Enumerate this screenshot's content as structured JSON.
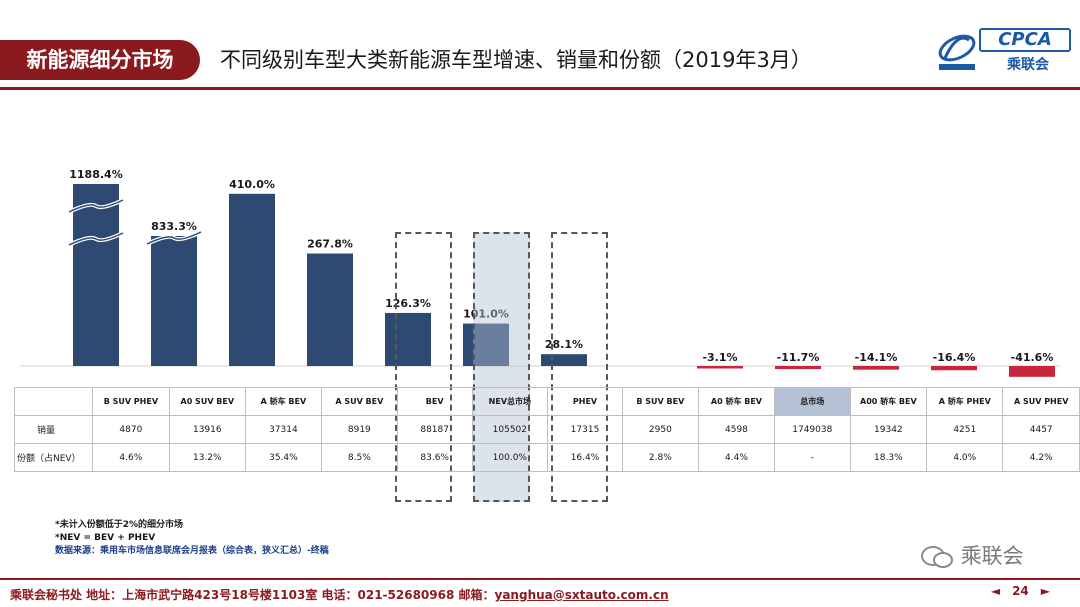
{
  "header": {
    "section_badge": "新能源细分市场",
    "title": "不同级别车型大类新能源车型增速、销量和份额（2019年3月）",
    "logo_text": "CPCA",
    "logo_cn": "乘联会"
  },
  "colors": {
    "positive_bar": "#2e4a73",
    "negative_bar": "#c8243c",
    "brand_red": "#8b1a1f",
    "highlight_cell": "#b4c0d3"
  },
  "chart_data": {
    "type": "bar",
    "categories": [
      "B SUV PHEV",
      "A0 SUV BEV",
      "A 轿车 BEV",
      "A SUV BEV",
      "BEV",
      "NEV总市场",
      "PHEV",
      "B SUV BEV",
      "A0 轿车 BEV",
      "总市场",
      "A00 轿车 BEV",
      "A 轿车 PHEV",
      "A SUV PHEV"
    ],
    "values": [
      1188.4,
      833.3,
      410.0,
      267.8,
      126.3,
      101.0,
      28.1,
      0,
      -3.1,
      -11.7,
      -14.1,
      -16.4,
      -41.6
    ],
    "value_labels": [
      "1188.4%",
      "833.3%",
      "410.0%",
      "267.8%",
      "126.3%",
      "101.0%",
      "28.1%",
      "",
      "-3.1%",
      "-11.7%",
      "-14.1%",
      "-16.4%",
      "-41.6%"
    ],
    "broken_axis_bars": [
      "B SUV PHEV",
      "A0 SUV BEV"
    ],
    "highlighted_categories": [
      "BEV",
      "NEV总市场",
      "PHEV"
    ]
  },
  "table": {
    "row_labels": [
      "销量",
      "份额（占NEV）"
    ],
    "headers": [
      "B SUV PHEV",
      "A0 SUV BEV",
      "A 轿车 BEV",
      "A SUV BEV",
      "BEV",
      "NEV总市场",
      "PHEV",
      "B SUV BEV",
      "A0 轿车 BEV",
      "总市场",
      "A00 轿车 BEV",
      "A 轿车 PHEV",
      "A SUV PHEV"
    ],
    "sales": [
      "4870",
      "13916",
      "37314",
      "8919",
      "88187",
      "105502",
      "17315",
      "2950",
      "4598",
      "1749038",
      "19342",
      "4251",
      "4457"
    ],
    "share": [
      "4.6%",
      "13.2%",
      "35.4%",
      "8.5%",
      "83.6%",
      "100.0%",
      "16.4%",
      "2.8%",
      "4.4%",
      "-",
      "18.3%",
      "4.0%",
      "4.2%"
    ]
  },
  "footnotes": {
    "line1": "*未计入份额低于2%的细分市场",
    "line2": "*NEV = BEV + PHEV",
    "line3": "数据来源：乘用车市场信息联席会月报表（综合表，狭义汇总）-终稿"
  },
  "wechat": "乘联会",
  "footer": {
    "text": "乘联会秘书处   地址：上海市武宁路423号18号楼1103室   电话：021-52680968   邮箱：",
    "email": "yanghua@sxtauto.com.cn",
    "page": "24"
  }
}
